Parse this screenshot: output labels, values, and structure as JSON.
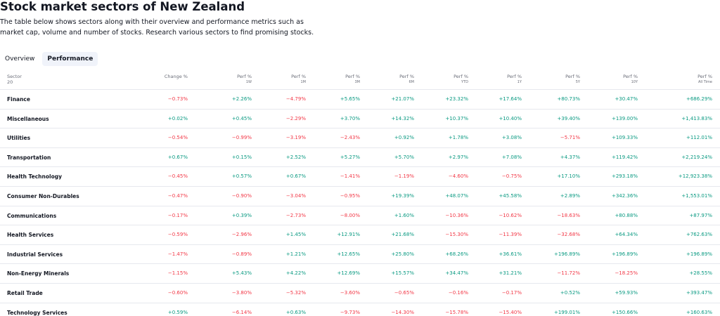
{
  "header": {
    "title": "Stock market sectors of New Zealand",
    "description": "The table below shows sectors along with their overview and performance metrics such as market cap, volume and number of stocks. Research various sectors to find promising stocks."
  },
  "tabs": [
    "Overview",
    "Performance"
  ],
  "table": {
    "columns": [
      {
        "label": "Sector",
        "sub": "20"
      },
      {
        "label": "Change %"
      },
      {
        "label": "Perf %",
        "sub": "1W"
      },
      {
        "label": "Perf %",
        "sub": "1M"
      },
      {
        "label": "Perf %",
        "sub": "3M"
      },
      {
        "label": "Perf %",
        "sub": "6M"
      },
      {
        "label": "Perf %",
        "sub": "YTD"
      },
      {
        "label": "Perf %",
        "sub": "1Y"
      },
      {
        "label": "Perf %",
        "sub": "5Y"
      },
      {
        "label": "Perf %",
        "sub": "10Y"
      },
      {
        "label": "Perf %",
        "sub": "All Time"
      }
    ],
    "rows": [
      [
        "Finance",
        "−0.73%",
        "+2.26%",
        "−4.79%",
        "+5.65%",
        "+21.07%",
        "+23.32%",
        "+17.64%",
        "+80.73%",
        "+30.47%",
        "+686.29%"
      ],
      [
        "Miscellaneous",
        "+0.02%",
        "+0.45%",
        "−2.29%",
        "+3.70%",
        "+14.32%",
        "+10.37%",
        "+10.40%",
        "+39.40%",
        "+139.00%",
        "+1,413.83%"
      ],
      [
        "Utilities",
        "−0.54%",
        "−0.99%",
        "−3.19%",
        "−2.43%",
        "+0.92%",
        "+1.78%",
        "+3.08%",
        "−5.71%",
        "+109.33%",
        "+112.01%"
      ],
      [
        "Transportation",
        "+0.67%",
        "+0.15%",
        "+2.52%",
        "+5.27%",
        "+5.70%",
        "+2.97%",
        "+7.08%",
        "+4.37%",
        "+119.42%",
        "+2,219.24%"
      ],
      [
        "Health Technology",
        "−0.45%",
        "+0.57%",
        "+0.67%",
        "−1.41%",
        "−1.19%",
        "−4.60%",
        "−0.75%",
        "+17.10%",
        "+293.18%",
        "+12,923.38%"
      ],
      [
        "Consumer Non-Durables",
        "−0.47%",
        "−0.90%",
        "−3.04%",
        "−0.95%",
        "+19.39%",
        "+48.07%",
        "+45.58%",
        "+2.89%",
        "+342.36%",
        "+1,553.01%"
      ],
      [
        "Communications",
        "−0.17%",
        "+0.39%",
        "−2.73%",
        "−8.00%",
        "+1.60%",
        "−10.36%",
        "−10.62%",
        "−18.63%",
        "+80.88%",
        "+87.97%"
      ],
      [
        "Health Services",
        "−0.59%",
        "−2.96%",
        "+1.45%",
        "+12.91%",
        "+21.68%",
        "−15.30%",
        "−11.39%",
        "−32.68%",
        "+64.34%",
        "+762.63%"
      ],
      [
        "Industrial Services",
        "−1.47%",
        "−0.89%",
        "+1.21%",
        "+12.65%",
        "+25.80%",
        "+68.26%",
        "+36.61%",
        "+196.89%",
        "+196.89%",
        "+196.89%"
      ],
      [
        "Non-Energy Minerals",
        "−1.15%",
        "+5.43%",
        "+4.22%",
        "+12.69%",
        "+15.57%",
        "+34.47%",
        "+31.21%",
        "−11.72%",
        "−18.25%",
        "+28.55%"
      ],
      [
        "Retail Trade",
        "−0.60%",
        "−3.80%",
        "−5.32%",
        "−3.60%",
        "−0.65%",
        "−0.16%",
        "−0.17%",
        "+0.52%",
        "+59.93%",
        "+393.47%"
      ],
      [
        "Technology Services",
        "+0.59%",
        "−6.14%",
        "+0.63%",
        "−9.73%",
        "−14.30%",
        "−15.78%",
        "−15.40%",
        "+199.01%",
        "+150.66%",
        "+160.63%"
      ]
    ]
  }
}
